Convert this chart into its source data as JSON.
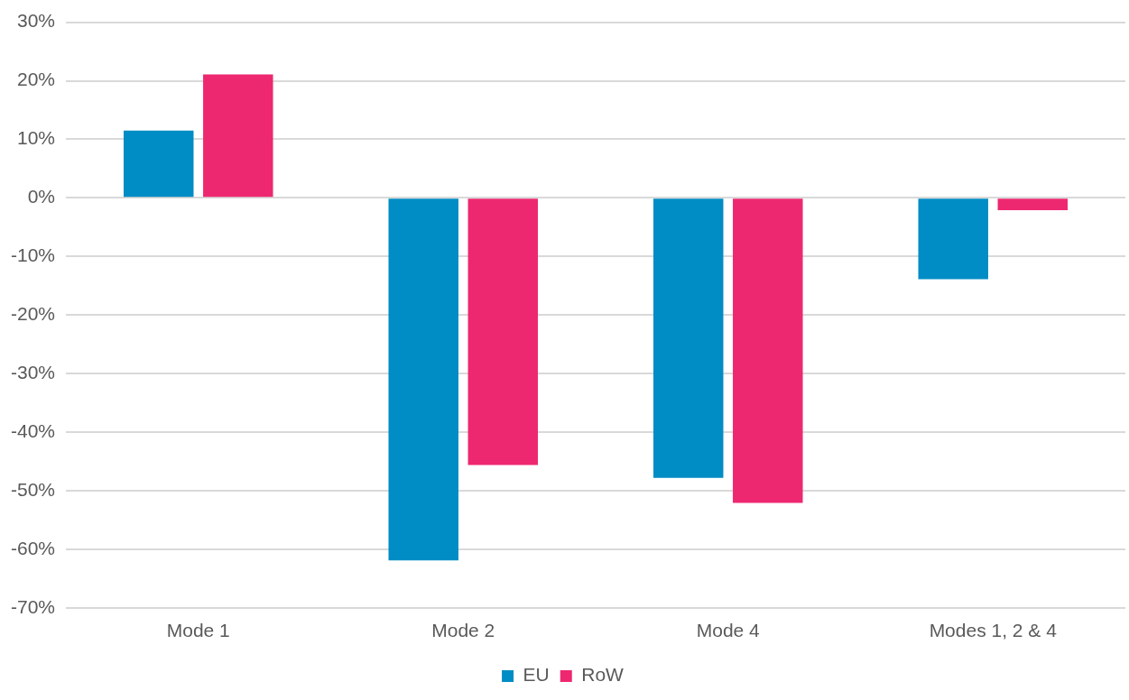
{
  "chart_data": {
    "type": "bar",
    "categories": [
      "Mode 1",
      "Mode 2",
      "Mode 4",
      "Modes 1, 2 & 4"
    ],
    "series": [
      {
        "name": "EU",
        "color": "#008cc4",
        "values": [
          11.5,
          -61.9,
          -47.8,
          -13.9
        ]
      },
      {
        "name": "RoW",
        "color": "#ee2870",
        "values": [
          21.1,
          -45.6,
          -52.1,
          -2.1
        ]
      }
    ],
    "ylim": [
      -70,
      30
    ],
    "yticks": [
      {
        "value": -70,
        "label": "-70%"
      },
      {
        "value": -60,
        "label": "-60%"
      },
      {
        "value": -50,
        "label": "-50%"
      },
      {
        "value": -40,
        "label": "-40%"
      },
      {
        "value": -30,
        "label": "-30%"
      },
      {
        "value": -20,
        "label": "-20%"
      },
      {
        "value": -10,
        "label": "-10%"
      },
      {
        "value": 0,
        "label": "0%"
      },
      {
        "value": 10,
        "label": "10%"
      },
      {
        "value": 20,
        "label": "20%"
      },
      {
        "value": 30,
        "label": "30%"
      }
    ],
    "grid": "y",
    "legend": "bottom"
  }
}
